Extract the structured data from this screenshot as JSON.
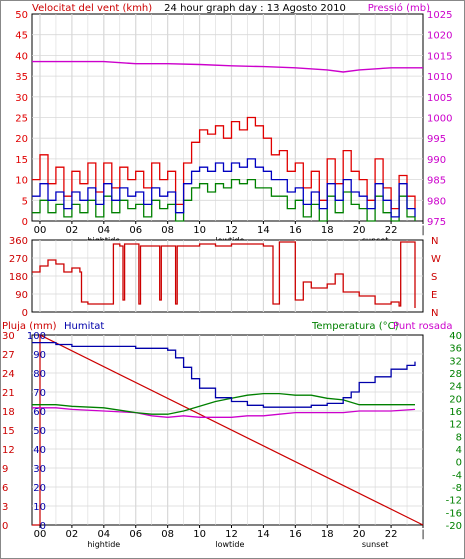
{
  "header": {
    "wind_label": "Velocitat del vent (kmh)",
    "title": "24 hour graph day : 13 Agosto 2010",
    "pressure_label": "Pressió (mb)"
  },
  "x_axis": {
    "ticks": [
      "00",
      "02",
      "04",
      "06",
      "08",
      "10",
      "12",
      "14",
      "16",
      "18",
      "20",
      "22",
      "|"
    ],
    "markers": [
      {
        "label": "hightide",
        "hour": 4
      },
      {
        "label": "lowtide",
        "hour": 11.9
      },
      {
        "label": "sunset",
        "hour": 21
      }
    ]
  },
  "bottom_header": {
    "rain_label": "Pluja (mm)",
    "humidity_label": "Humitat",
    "temp_label": "Temperatura (°C)",
    "dew_label": "Punt rosada"
  },
  "colors": {
    "wind_gust": "#e00000",
    "wind_avg": "#0000c0",
    "wind_min": "#008000",
    "pressure": "#cc00cc",
    "direction": "#cc0000",
    "humidity": "#0000aa",
    "temperature": "#008000",
    "dew": "#cc00cc",
    "rain": "#cc0000",
    "grid": "#d8d8d8"
  },
  "chart_data": [
    {
      "type": "line",
      "title": "24 hour graph day : 13 Agosto 2010",
      "x_unit": "hour",
      "xlim": [
        -0.5,
        24
      ],
      "y_left": {
        "label": "Velocitat del vent (kmh)",
        "ticks": [
          0,
          5,
          10,
          15,
          20,
          25,
          30,
          35,
          40,
          45,
          50
        ],
        "ylim": [
          0,
          50
        ]
      },
      "y_right": {
        "label": "Pressió (mb)",
        "ticks": [
          975,
          980,
          985,
          990,
          995,
          1000,
          1005,
          1010,
          1015,
          1020,
          1025
        ],
        "ylim": [
          975,
          1025
        ]
      },
      "series": [
        {
          "name": "pressure",
          "axis": "right",
          "x": [
            -0.5,
            2,
            4,
            6,
            8,
            10,
            12,
            14,
            16,
            18,
            19,
            20,
            22,
            24
          ],
          "values": [
            1013.5,
            1013.5,
            1013.5,
            1013,
            1013,
            1012.8,
            1012.5,
            1012.3,
            1012,
            1011.5,
            1011,
            1011.5,
            1012,
            1012
          ]
        },
        {
          "name": "gust",
          "axis": "left",
          "x": [
            -0.5,
            0,
            0.5,
            1,
            1.5,
            2,
            2.5,
            3,
            3.5,
            4,
            4.5,
            5,
            5.5,
            6,
            6.5,
            7,
            7.5,
            8,
            8.5,
            9,
            9.5,
            10,
            10.5,
            11,
            11.5,
            12,
            12.5,
            13,
            13.5,
            14,
            14.5,
            15,
            15.5,
            16,
            16.5,
            17,
            17.5,
            18,
            18.5,
            19,
            19.5,
            20,
            20.5,
            21,
            21.5,
            22,
            22.5,
            23,
            23.5
          ],
          "values": [
            10,
            16,
            9,
            13,
            6,
            12,
            9,
            14,
            7,
            14,
            8,
            13,
            10,
            12,
            8,
            14,
            10,
            12,
            4,
            14,
            19,
            22,
            21,
            23,
            20,
            24,
            22,
            25,
            23,
            20,
            16,
            17,
            12,
            14,
            8,
            12,
            5,
            15,
            9,
            17,
            12,
            10,
            5,
            15,
            8,
            3,
            11,
            6,
            3
          ]
        },
        {
          "name": "average",
          "axis": "left",
          "x": [
            -0.5,
            0,
            0.5,
            1,
            1.5,
            2,
            2.5,
            3,
            3.5,
            4,
            4.5,
            5,
            5.5,
            6,
            6.5,
            7,
            7.5,
            8,
            8.5,
            9,
            9.5,
            10,
            10.5,
            11,
            11.5,
            12,
            12.5,
            13,
            13.5,
            14,
            14.5,
            15,
            15.5,
            16,
            16.5,
            17,
            17.5,
            18,
            18.5,
            19,
            19.5,
            20,
            20.5,
            21,
            21.5,
            22,
            22.5,
            23,
            23.5
          ],
          "values": [
            6,
            9,
            5,
            7,
            3,
            7,
            5,
            8,
            4,
            9,
            5,
            8,
            6,
            7,
            4,
            8,
            6,
            7,
            2,
            9,
            12,
            13,
            12,
            14,
            12,
            14,
            13,
            15,
            13,
            12,
            10,
            10,
            7,
            8,
            4,
            7,
            3,
            9,
            5,
            10,
            7,
            6,
            3,
            9,
            5,
            1,
            9,
            3,
            1
          ]
        },
        {
          "name": "minimum",
          "axis": "left",
          "x": [
            -0.5,
            0,
            0.5,
            1,
            1.5,
            2,
            2.5,
            3,
            3.5,
            4,
            4.5,
            5,
            5.5,
            6,
            6.5,
            7,
            7.5,
            8,
            8.5,
            9,
            9.5,
            10,
            10.5,
            11,
            11.5,
            12,
            12.5,
            13,
            13.5,
            14,
            14.5,
            15,
            15.5,
            16,
            16.5,
            17,
            17.5,
            18,
            18.5,
            19,
            19.5,
            20,
            20.5,
            21,
            21.5,
            22,
            22.5,
            23,
            23.5
          ],
          "values": [
            2,
            5,
            2,
            4,
            1,
            4,
            2,
            5,
            1,
            6,
            2,
            5,
            3,
            4,
            1,
            5,
            3,
            4,
            0,
            5,
            8,
            9,
            7,
            9,
            8,
            10,
            9,
            10,
            8,
            8,
            6,
            6,
            3,
            5,
            1,
            4,
            0,
            6,
            2,
            7,
            4,
            3,
            0,
            6,
            2,
            0,
            6,
            1,
            0
          ]
        }
      ]
    },
    {
      "type": "line",
      "x_unit": "hour",
      "xlim": [
        -0.5,
        24
      ],
      "y_left": {
        "ticks": [
          0,
          90,
          180,
          270,
          360
        ],
        "ylim": [
          0,
          360
        ]
      },
      "y_right": {
        "ticks": [
          "N",
          "W",
          "S",
          "E",
          "N"
        ]
      },
      "series": [
        {
          "name": "direction",
          "x": [
            -0.5,
            0,
            0.5,
            1,
            1.5,
            2,
            2.5,
            2.6,
            3,
            4,
            4.5,
            4.6,
            5,
            5.2,
            5.3,
            6,
            6.2,
            6.3,
            7,
            7.5,
            7.6,
            8,
            8.5,
            8.6,
            9,
            10,
            11,
            12,
            13,
            14,
            14.5,
            14.6,
            15,
            16,
            16.5,
            17,
            18,
            18.5,
            19,
            20,
            21,
            22,
            22.5,
            22.6,
            23,
            23.5
          ],
          "values": [
            200,
            230,
            260,
            240,
            200,
            220,
            200,
            50,
            40,
            40,
            40,
            340,
            330,
            60,
            340,
            340,
            40,
            330,
            330,
            60,
            330,
            330,
            40,
            330,
            330,
            340,
            330,
            340,
            340,
            330,
            330,
            40,
            350,
            60,
            150,
            120,
            140,
            190,
            100,
            80,
            40,
            50,
            30,
            350,
            350,
            20
          ]
        }
      ]
    },
    {
      "type": "line",
      "x_unit": "hour",
      "xlim": [
        -0.5,
        24
      ],
      "y_rain": {
        "label": "Pluja (mm)",
        "ticks": [
          0,
          3,
          6,
          9,
          12,
          15,
          18,
          21,
          24,
          27,
          30
        ],
        "ylim": [
          0,
          30
        ]
      },
      "y_humidity": {
        "label": "Humitat",
        "ticks": [
          0,
          10,
          20,
          30,
          40,
          50,
          60,
          70,
          80,
          90,
          100
        ],
        "ylim": [
          0,
          100
        ]
      },
      "y_temp": {
        "label": "Temperatura (°C)",
        "ticks": [
          -20,
          -16,
          -12,
          -8,
          -4,
          0,
          4,
          8,
          12,
          16,
          20,
          24,
          28,
          32,
          36,
          40
        ],
        "ylim": [
          -20,
          40
        ]
      },
      "series": [
        {
          "name": "rain",
          "axis": "rain",
          "x": [
            -0.5,
            0,
            0,
            24
          ],
          "values": [
            0,
            0,
            30,
            0
          ]
        },
        {
          "name": "humidity",
          "axis": "humidity",
          "x": [
            -0.5,
            1,
            2,
            4,
            6,
            7,
            8,
            8.5,
            9,
            9.5,
            10,
            11,
            12,
            13,
            14,
            15,
            16,
            17,
            18,
            19,
            19.5,
            20,
            21,
            22,
            23,
            23.5
          ],
          "values": [
            96,
            95,
            94,
            94,
            93,
            93,
            92,
            88,
            83,
            77,
            72,
            67,
            65,
            63,
            62,
            62,
            62,
            63,
            64,
            67,
            70,
            75,
            78,
            82,
            84,
            86
          ]
        },
        {
          "name": "temperature",
          "axis": "temp",
          "x": [
            -0.5,
            1,
            2,
            4,
            6,
            7,
            8,
            9,
            10,
            11,
            12,
            13,
            14,
            15,
            16,
            17,
            18,
            19,
            20,
            22,
            23.5
          ],
          "values": [
            18,
            18,
            17.5,
            17,
            15.5,
            15,
            15,
            16,
            17.5,
            19,
            20,
            21,
            21.5,
            21.5,
            21,
            21,
            20,
            19.5,
            18,
            18,
            18
          ]
        },
        {
          "name": "dew",
          "axis": "temp",
          "x": [
            -0.5,
            1,
            2,
            4,
            6,
            7,
            8,
            9,
            10,
            11,
            12,
            13,
            14,
            15,
            16,
            17,
            18,
            19,
            20,
            22,
            23.5
          ],
          "values": [
            17,
            17,
            16.5,
            16,
            15.5,
            14.5,
            14,
            14.5,
            14,
            14,
            14,
            14.5,
            14.5,
            15,
            15.5,
            15.5,
            15.5,
            15.5,
            16,
            16,
            16.5
          ]
        }
      ]
    }
  ]
}
